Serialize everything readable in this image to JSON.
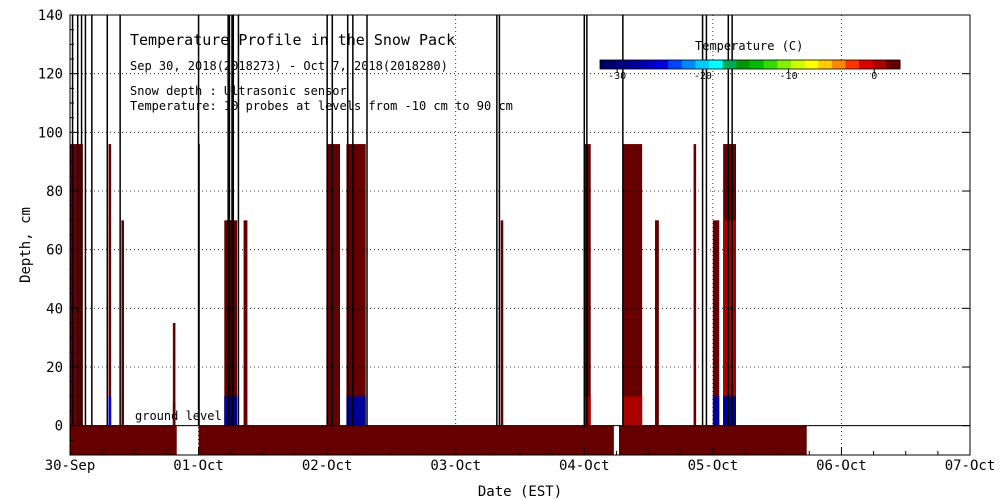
{
  "chart_data": {
    "type": "heatmap",
    "title": "Temperature Profile in the Snow Pack",
    "subtitle": "Sep 30, 2018(2018273) - Oct  7, 2018(2018280)",
    "notes": [
      "Snow depth : Ultrasonic sensor",
      "Temperature: 10 probes at levels from -10 cm to 90 cm"
    ],
    "xlabel": "Date (EST)",
    "ylabel": "Depth, cm",
    "x_ticks": [
      "30-Sep",
      "01-Oct",
      "02-Oct",
      "03-Oct",
      "04-Oct",
      "05-Oct",
      "06-Oct",
      "07-Oct"
    ],
    "xlim": [
      0,
      7
    ],
    "ylim": [
      -10,
      140
    ],
    "y_ticks": [
      0,
      20,
      40,
      60,
      80,
      100,
      120,
      140
    ],
    "grid": true,
    "annotation": "ground level",
    "colorbar": {
      "label": "Temperature (C)",
      "ticks": [
        -30,
        -20,
        -10,
        0
      ],
      "range": [
        -32,
        3
      ],
      "colors": [
        "#000066",
        "#00007a",
        "#000099",
        "#0000bb",
        "#0000e0",
        "#0044ff",
        "#0088ff",
        "#00ccff",
        "#00ffff",
        "#00aa55",
        "#009900",
        "#00bb00",
        "#33dd00",
        "#88ee00",
        "#ccff00",
        "#ffff00",
        "#ffcc00",
        "#ff8800",
        "#ff3300",
        "#dd0000",
        "#aa0000",
        "#660000"
      ]
    },
    "ground_band": [
      {
        "x0": 0.0,
        "x1": 0.83,
        "temp": 2
      },
      {
        "x0": 1.0,
        "x1": 4.23,
        "temp": 2
      },
      {
        "x0": 4.27,
        "x1": 5.73,
        "temp": 2
      }
    ],
    "columns": [
      {
        "x0": 0.0,
        "x1": 0.1,
        "top": 96,
        "temp": 2
      },
      {
        "x0": 0.3,
        "x1": 0.32,
        "top": 96,
        "temp": 2
      },
      {
        "x0": 0.3,
        "x1": 0.32,
        "top": 10,
        "temp": -25
      },
      {
        "x0": 0.4,
        "x1": 0.42,
        "top": 70,
        "temp": 2
      },
      {
        "x0": 0.8,
        "x1": 0.82,
        "top": 8,
        "temp": -28
      },
      {
        "x0": 0.8,
        "x1": 0.82,
        "top": 35,
        "temp": 2
      },
      {
        "x0": 1.0,
        "x1": 1.01,
        "top": 96,
        "temp": 2
      },
      {
        "x0": 1.2,
        "x1": 1.3,
        "top": 70,
        "temp": 2
      },
      {
        "x0": 1.2,
        "x1": 1.3,
        "top": 10,
        "temp": -28
      },
      {
        "x0": 1.35,
        "x1": 1.38,
        "top": 70,
        "temp": 2
      },
      {
        "x0": 2.0,
        "x1": 2.1,
        "top": 96,
        "temp": 2
      },
      {
        "x0": 2.15,
        "x1": 2.3,
        "top": 96,
        "temp": 2
      },
      {
        "x0": 2.15,
        "x1": 2.3,
        "top": 10,
        "temp": -28
      },
      {
        "x0": 3.35,
        "x1": 3.37,
        "top": 70,
        "temp": 2
      },
      {
        "x0": 4.0,
        "x1": 4.05,
        "top": 96,
        "temp": 2
      },
      {
        "x0": 4.0,
        "x1": 4.05,
        "top": 10,
        "temp": 0
      },
      {
        "x0": 4.3,
        "x1": 4.45,
        "top": 96,
        "temp": 2
      },
      {
        "x0": 4.3,
        "x1": 4.45,
        "top": 10,
        "temp": 0
      },
      {
        "x0": 4.55,
        "x1": 4.58,
        "top": 70,
        "temp": 2
      },
      {
        "x0": 4.85,
        "x1": 4.87,
        "top": 96,
        "temp": 2
      },
      {
        "x0": 5.0,
        "x1": 5.05,
        "top": 70,
        "temp": 2
      },
      {
        "x0": 5.0,
        "x1": 5.05,
        "top": 10,
        "temp": -28
      },
      {
        "x0": 5.08,
        "x1": 5.18,
        "top": 96,
        "temp": 2
      },
      {
        "x0": 5.08,
        "x1": 5.18,
        "top": 70,
        "temp": 0
      },
      {
        "x0": 5.08,
        "x1": 5.18,
        "top": 10,
        "temp": -28
      }
    ],
    "snow_depth_lines": [
      0.02,
      0.06,
      0.09,
      0.12,
      0.17,
      0.29,
      0.39,
      1.0,
      1.23,
      1.24,
      1.26,
      1.27,
      1.31,
      2.0,
      2.04,
      2.16,
      2.2,
      2.31,
      3.32,
      3.34,
      4.0,
      4.02,
      4.3,
      4.92,
      4.95,
      5.12,
      5.15
    ]
  }
}
